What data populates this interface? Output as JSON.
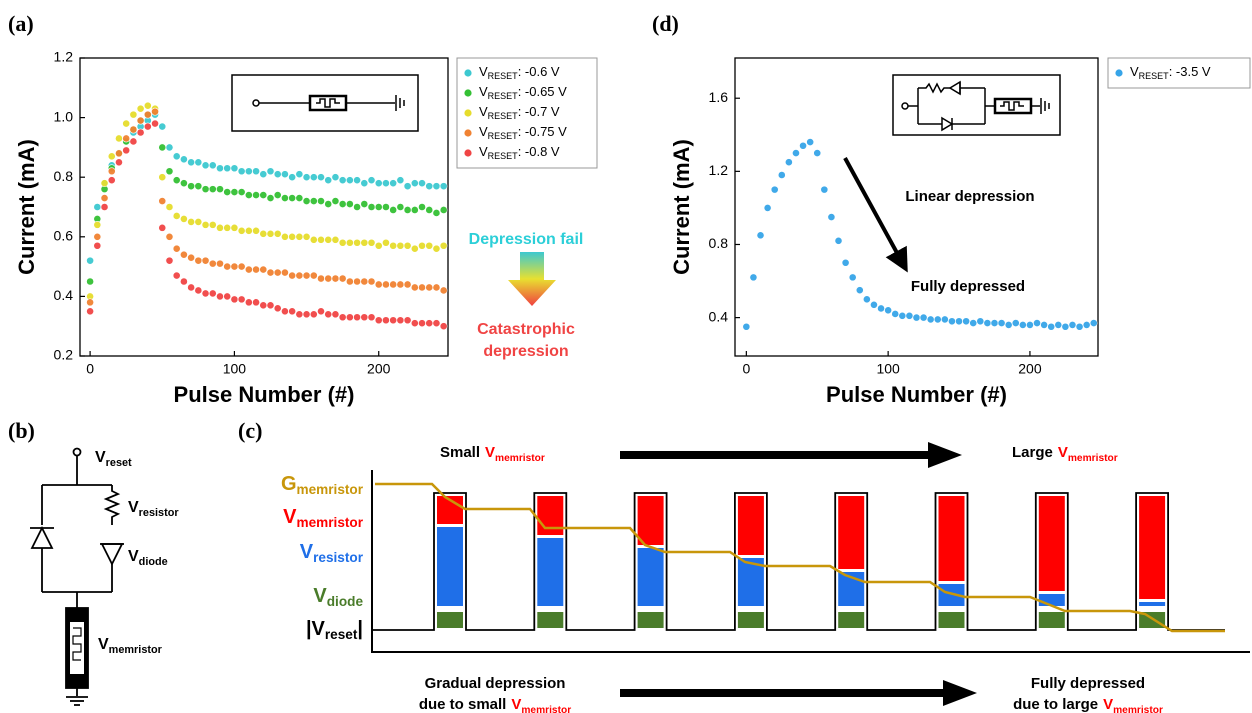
{
  "chart_data": [
    {
      "type": "scatter",
      "label": "(a)",
      "xlabel": "Pulse Number (#)",
      "ylabel": "Current (mA)",
      "xlim": [
        -7,
        248
      ],
      "xticks": [
        0,
        100,
        200
      ],
      "ylim": [
        0.2,
        1.2
      ],
      "yticks": [
        0.2,
        0.4,
        0.6,
        0.8,
        {
          "value": 1,
          "label": "1.0"
        },
        1.2
      ],
      "x": [
        0,
        5,
        10,
        15,
        20,
        25,
        30,
        35,
        40,
        45,
        50,
        55,
        60,
        65,
        70,
        75,
        80,
        85,
        90,
        95,
        100,
        105,
        110,
        115,
        120,
        125,
        130,
        135,
        140,
        145,
        150,
        155,
        160,
        165,
        170,
        175,
        180,
        185,
        190,
        195,
        200,
        205,
        210,
        215,
        220,
        225,
        230,
        235,
        240,
        245
      ],
      "series": [
        {
          "name": "VRESET: -0.6 V",
          "color": "#3cc8d0",
          "values": [
            0.52,
            0.7,
            0.78,
            0.84,
            0.88,
            0.92,
            0.95,
            0.97,
            0.99,
            1.01,
            0.97,
            0.9,
            0.87,
            0.86,
            0.85,
            0.85,
            0.84,
            0.84,
            0.83,
            0.83,
            0.83,
            0.82,
            0.82,
            0.82,
            0.81,
            0.82,
            0.81,
            0.81,
            0.8,
            0.81,
            0.8,
            0.8,
            0.8,
            0.79,
            0.8,
            0.79,
            0.79,
            0.79,
            0.78,
            0.79,
            0.78,
            0.78,
            0.78,
            0.79,
            0.77,
            0.78,
            0.78,
            0.77,
            0.77,
            0.77
          ]
        },
        {
          "name": "VRESET: -0.65 V",
          "color": "#34c034",
          "values": [
            0.45,
            0.66,
            0.76,
            0.83,
            0.88,
            0.92,
            0.96,
            0.99,
            1.01,
            1.02,
            0.9,
            0.82,
            0.79,
            0.78,
            0.77,
            0.77,
            0.76,
            0.76,
            0.76,
            0.75,
            0.75,
            0.75,
            0.74,
            0.74,
            0.74,
            0.73,
            0.74,
            0.73,
            0.73,
            0.73,
            0.72,
            0.72,
            0.72,
            0.71,
            0.72,
            0.71,
            0.71,
            0.7,
            0.71,
            0.7,
            0.7,
            0.7,
            0.69,
            0.7,
            0.69,
            0.69,
            0.7,
            0.69,
            0.68,
            0.69
          ]
        },
        {
          "name": "VRESET: -0.7 V",
          "color": "#e6dc2c",
          "values": [
            0.4,
            0.64,
            0.78,
            0.87,
            0.93,
            0.98,
            1.01,
            1.03,
            1.04,
            1.03,
            0.8,
            0.7,
            0.67,
            0.66,
            0.65,
            0.65,
            0.64,
            0.64,
            0.63,
            0.63,
            0.63,
            0.62,
            0.62,
            0.62,
            0.61,
            0.61,
            0.61,
            0.6,
            0.6,
            0.6,
            0.6,
            0.59,
            0.59,
            0.59,
            0.59,
            0.58,
            0.58,
            0.58,
            0.58,
            0.58,
            0.57,
            0.58,
            0.57,
            0.57,
            0.57,
            0.56,
            0.57,
            0.57,
            0.56,
            0.57
          ]
        },
        {
          "name": "VRESET: -0.75 V",
          "color": "#f08232",
          "values": [
            0.38,
            0.6,
            0.73,
            0.82,
            0.88,
            0.93,
            0.96,
            0.99,
            1.01,
            1.02,
            0.72,
            0.6,
            0.56,
            0.54,
            0.53,
            0.52,
            0.52,
            0.51,
            0.51,
            0.5,
            0.5,
            0.5,
            0.49,
            0.49,
            0.49,
            0.48,
            0.48,
            0.48,
            0.47,
            0.47,
            0.47,
            0.47,
            0.46,
            0.46,
            0.46,
            0.46,
            0.45,
            0.45,
            0.45,
            0.45,
            0.44,
            0.44,
            0.44,
            0.44,
            0.44,
            0.43,
            0.43,
            0.43,
            0.43,
            0.42
          ]
        },
        {
          "name": "VRESET: -0.8 V",
          "color": "#f04444",
          "values": [
            0.35,
            0.57,
            0.7,
            0.79,
            0.85,
            0.89,
            0.92,
            0.95,
            0.97,
            0.98,
            0.63,
            0.52,
            0.47,
            0.45,
            0.43,
            0.42,
            0.41,
            0.41,
            0.4,
            0.4,
            0.39,
            0.39,
            0.38,
            0.38,
            0.37,
            0.37,
            0.36,
            0.35,
            0.35,
            0.34,
            0.34,
            0.34,
            0.35,
            0.34,
            0.34,
            0.33,
            0.33,
            0.33,
            0.33,
            0.33,
            0.32,
            0.32,
            0.32,
            0.32,
            0.32,
            0.31,
            0.31,
            0.31,
            0.31,
            0.3
          ]
        }
      ],
      "annotations": [
        {
          "text": "Depression fail",
          "color": "#2ccfd8"
        },
        {
          "text": "Catastrophic",
          "color": "#f04444"
        },
        {
          "text": "depression",
          "color": "#f04444"
        }
      ]
    },
    {
      "type": "scatter",
      "label": "(d)",
      "xlabel": "Pulse Number (#)",
      "ylabel": "Current (mA)",
      "xlim": [
        -8,
        248
      ],
      "xticks": [
        0,
        100,
        200
      ],
      "ylim": [
        0.19,
        1.82
      ],
      "yticks": [
        0.4,
        0.8,
        1.2,
        1.6
      ],
      "x": [
        0,
        5,
        10,
        15,
        20,
        25,
        30,
        35,
        40,
        45,
        50,
        55,
        60,
        65,
        70,
        75,
        80,
        85,
        90,
        95,
        100,
        105,
        110,
        115,
        120,
        125,
        130,
        135,
        140,
        145,
        150,
        155,
        160,
        165,
        170,
        175,
        180,
        185,
        190,
        195,
        200,
        205,
        210,
        215,
        220,
        225,
        230,
        235,
        240,
        245
      ],
      "series": [
        {
          "name": "VRESET: -3.5 V",
          "color": "#36a4e8",
          "values": [
            0.35,
            0.62,
            0.85,
            1.0,
            1.1,
            1.18,
            1.25,
            1.3,
            1.34,
            1.36,
            1.3,
            1.1,
            0.95,
            0.82,
            0.7,
            0.62,
            0.55,
            0.5,
            0.47,
            0.45,
            0.44,
            0.42,
            0.41,
            0.41,
            0.4,
            0.4,
            0.39,
            0.39,
            0.39,
            0.38,
            0.38,
            0.38,
            0.37,
            0.38,
            0.37,
            0.37,
            0.37,
            0.36,
            0.37,
            0.36,
            0.36,
            0.37,
            0.36,
            0.35,
            0.36,
            0.35,
            0.36,
            0.35,
            0.36,
            0.37
          ]
        }
      ],
      "annotations": [
        {
          "text": "Linear depression",
          "color": "#000000"
        },
        {
          "text": "Fully depressed",
          "color": "#000000"
        }
      ]
    }
  ],
  "panel_b": {
    "label": "(b)",
    "reset": [
      "V",
      "reset"
    ],
    "resistor": [
      "V",
      "resistor"
    ],
    "diode": [
      "V",
      "diode"
    ],
    "memristor": [
      "V",
      "memristor"
    ]
  },
  "panel_c": {
    "label": "(c)",
    "rows": [
      {
        "main": "G",
        "sub": "memristor",
        "color": "#c8960a"
      },
      {
        "main": "V",
        "sub": "memristor",
        "color": "#ff0000"
      },
      {
        "main": "V",
        "sub": "resistor",
        "color": "#1f6fe8"
      },
      {
        "main": "V",
        "sub": "diode",
        "color": "#4a7c2a"
      },
      {
        "main": "|V",
        "sub": "reset",
        "tail": "|",
        "color": "#000000"
      }
    ],
    "top_left": [
      "Small",
      "V",
      "memristor"
    ],
    "top_right": [
      "Large",
      "V",
      "memristor"
    ],
    "bottom_left": [
      "Gradual depression",
      "due to small",
      "V",
      "memristor"
    ],
    "bottom_right": [
      "Fully depressed",
      "due to large",
      "V",
      "memristor"
    ]
  }
}
